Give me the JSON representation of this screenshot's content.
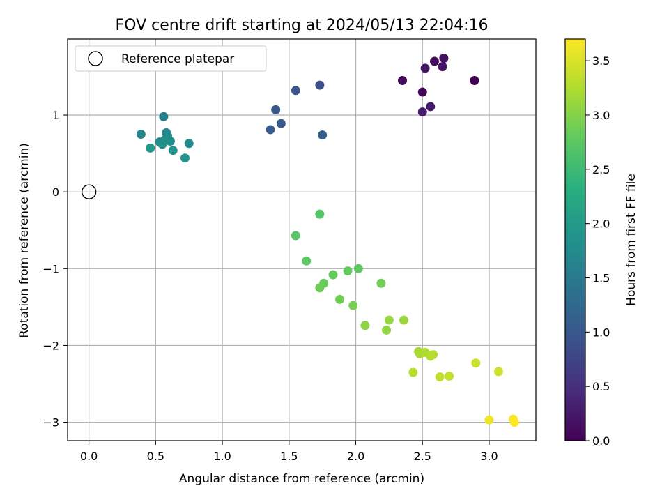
{
  "chart_data": {
    "type": "scatter",
    "title": "FOV centre drift starting at 2024/05/13 22:04:16",
    "xlabel": "Angular distance from reference (arcmin)",
    "ylabel": "Rotation from reference (arcmin)",
    "xlim": [
      -0.16,
      3.35
    ],
    "ylim": [
      -3.24,
      1.99
    ],
    "xticks": [
      0.0,
      0.5,
      1.0,
      1.5,
      2.0,
      2.5,
      3.0
    ],
    "xtick_labels": [
      "0.0",
      "0.5",
      "1.0",
      "1.5",
      "2.0",
      "2.5",
      "3.0"
    ],
    "yticks": [
      -3,
      -2,
      -1,
      0,
      1
    ],
    "ytick_labels": [
      "−3",
      "−2",
      "−1",
      "0",
      "1"
    ],
    "grid": true,
    "legend": {
      "position": "upper-left",
      "entries": [
        {
          "label": "Reference platepar",
          "marker": "open-circle"
        }
      ]
    },
    "reference_point": {
      "x": 0.0,
      "y": 0.0
    },
    "colorbar": {
      "label": "Hours from first FF file",
      "colormap": "viridis",
      "range": [
        0.0,
        3.7
      ],
      "ticks": [
        0.0,
        0.5,
        1.0,
        1.5,
        2.0,
        2.5,
        3.0,
        3.5
      ],
      "tick_labels": [
        "0.0",
        "0.5",
        "1.0",
        "1.5",
        "2.0",
        "2.5",
        "3.0",
        "3.5"
      ]
    },
    "points": [
      {
        "x": 2.89,
        "y": 1.45,
        "hours": 0.0
      },
      {
        "x": 2.5,
        "y": 1.3,
        "hours": 0.05
      },
      {
        "x": 2.35,
        "y": 1.45,
        "hours": 0.1
      },
      {
        "x": 2.59,
        "y": 1.7,
        "hours": 0.12
      },
      {
        "x": 2.66,
        "y": 1.74,
        "hours": 0.15
      },
      {
        "x": 2.65,
        "y": 1.63,
        "hours": 0.18
      },
      {
        "x": 2.52,
        "y": 1.61,
        "hours": 0.22
      },
      {
        "x": 2.56,
        "y": 1.11,
        "hours": 0.26
      },
      {
        "x": 2.5,
        "y": 1.04,
        "hours": 0.3
      },
      {
        "x": 1.73,
        "y": 1.39,
        "hours": 0.9
      },
      {
        "x": 1.55,
        "y": 1.32,
        "hours": 0.95
      },
      {
        "x": 1.4,
        "y": 1.07,
        "hours": 1.0
      },
      {
        "x": 1.44,
        "y": 0.89,
        "hours": 1.02
      },
      {
        "x": 1.36,
        "y": 0.81,
        "hours": 1.05
      },
      {
        "x": 1.75,
        "y": 0.74,
        "hours": 1.1
      },
      {
        "x": 0.56,
        "y": 0.98,
        "hours": 1.6
      },
      {
        "x": 0.39,
        "y": 0.75,
        "hours": 1.65
      },
      {
        "x": 0.58,
        "y": 0.77,
        "hours": 1.7
      },
      {
        "x": 0.59,
        "y": 0.73,
        "hours": 1.72
      },
      {
        "x": 0.75,
        "y": 0.63,
        "hours": 1.75
      },
      {
        "x": 0.53,
        "y": 0.65,
        "hours": 1.78
      },
      {
        "x": 0.61,
        "y": 0.66,
        "hours": 1.8
      },
      {
        "x": 0.57,
        "y": 0.68,
        "hours": 1.82
      },
      {
        "x": 0.55,
        "y": 0.62,
        "hours": 1.85
      },
      {
        "x": 0.63,
        "y": 0.54,
        "hours": 1.88
      },
      {
        "x": 0.72,
        "y": 0.44,
        "hours": 1.9
      },
      {
        "x": 0.46,
        "y": 0.57,
        "hours": 1.95
      },
      {
        "x": 1.73,
        "y": -0.29,
        "hours": 2.7
      },
      {
        "x": 1.55,
        "y": -0.57,
        "hours": 2.72
      },
      {
        "x": 1.63,
        "y": -0.9,
        "hours": 2.75
      },
      {
        "x": 2.02,
        "y": -1.0,
        "hours": 2.78
      },
      {
        "x": 1.94,
        "y": -1.03,
        "hours": 2.8
      },
      {
        "x": 1.83,
        "y": -1.08,
        "hours": 2.82
      },
      {
        "x": 1.76,
        "y": -1.19,
        "hours": 2.84
      },
      {
        "x": 1.73,
        "y": -1.25,
        "hours": 2.86
      },
      {
        "x": 2.19,
        "y": -1.19,
        "hours": 2.88
      },
      {
        "x": 1.88,
        "y": -1.4,
        "hours": 2.9
      },
      {
        "x": 1.98,
        "y": -1.48,
        "hours": 2.92
      },
      {
        "x": 2.07,
        "y": -1.74,
        "hours": 3.05
      },
      {
        "x": 2.23,
        "y": -1.8,
        "hours": 3.08
      },
      {
        "x": 2.25,
        "y": -1.67,
        "hours": 3.1
      },
      {
        "x": 2.36,
        "y": -1.67,
        "hours": 3.12
      },
      {
        "x": 2.47,
        "y": -2.08,
        "hours": 3.2
      },
      {
        "x": 2.48,
        "y": -2.11,
        "hours": 3.22
      },
      {
        "x": 2.52,
        "y": -2.09,
        "hours": 3.24
      },
      {
        "x": 2.56,
        "y": -2.14,
        "hours": 3.26
      },
      {
        "x": 2.58,
        "y": -2.12,
        "hours": 3.28
      },
      {
        "x": 2.43,
        "y": -2.35,
        "hours": 3.3
      },
      {
        "x": 2.63,
        "y": -2.41,
        "hours": 3.35
      },
      {
        "x": 2.7,
        "y": -2.4,
        "hours": 3.37
      },
      {
        "x": 2.9,
        "y": -2.23,
        "hours": 3.4
      },
      {
        "x": 3.07,
        "y": -2.34,
        "hours": 3.42
      },
      {
        "x": 3.0,
        "y": -2.97,
        "hours": 3.62
      },
      {
        "x": 3.18,
        "y": -2.96,
        "hours": 3.66
      },
      {
        "x": 3.19,
        "y": -3.0,
        "hours": 3.7
      }
    ]
  }
}
